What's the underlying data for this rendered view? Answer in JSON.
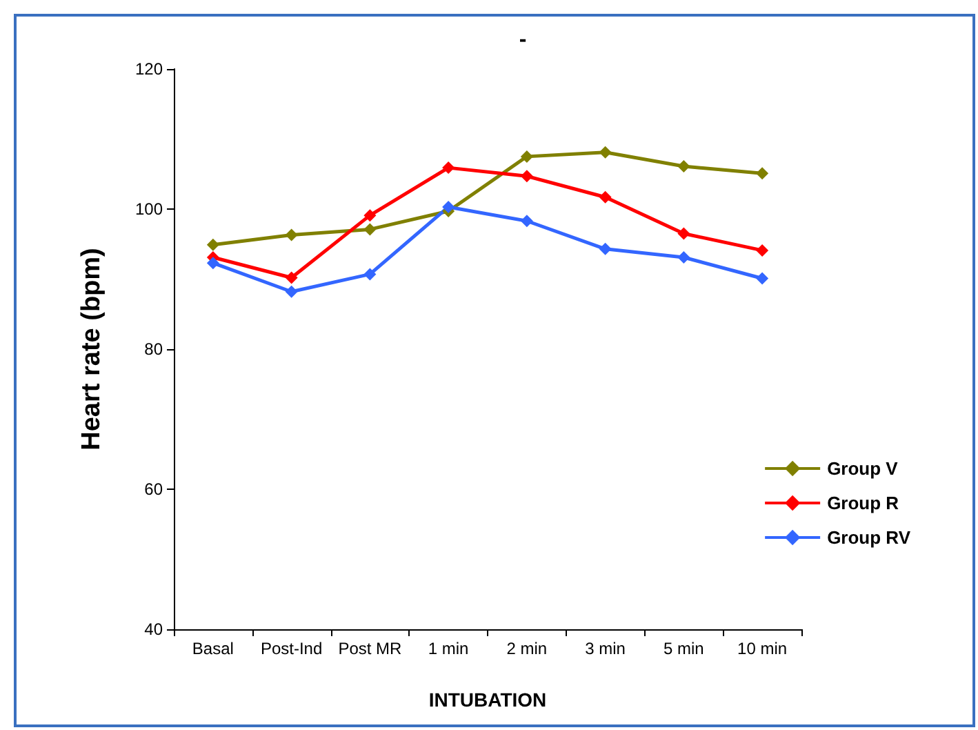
{
  "chart_data": {
    "type": "line",
    "title": "-",
    "xlabel": "INTUBATION",
    "ylabel": "Heart rate (bpm)",
    "categories": [
      "Basal",
      "Post-Ind",
      "Post MR",
      "1 min",
      "2 min",
      "3 min",
      "5 min",
      "10 min"
    ],
    "series": [
      {
        "name": "Group V",
        "color": "#808000",
        "values": [
          94.9,
          96.3,
          97.1,
          99.7,
          107.5,
          108.1,
          106.1,
          105.1
        ]
      },
      {
        "name": "Group R",
        "color": "#ff0000",
        "values": [
          93.1,
          90.2,
          99.1,
          105.9,
          104.7,
          101.7,
          96.5,
          94.1
        ]
      },
      {
        "name": "Group RV",
        "color": "#3366ff",
        "values": [
          92.3,
          88.2,
          90.7,
          100.3,
          98.3,
          94.3,
          93.1,
          90.1
        ]
      }
    ],
    "ylim": [
      40,
      120
    ],
    "yticks": [
      40,
      60,
      80,
      100,
      120
    ],
    "grid": false,
    "legend": "right",
    "marker": "diamond",
    "line_style": "solid"
  }
}
